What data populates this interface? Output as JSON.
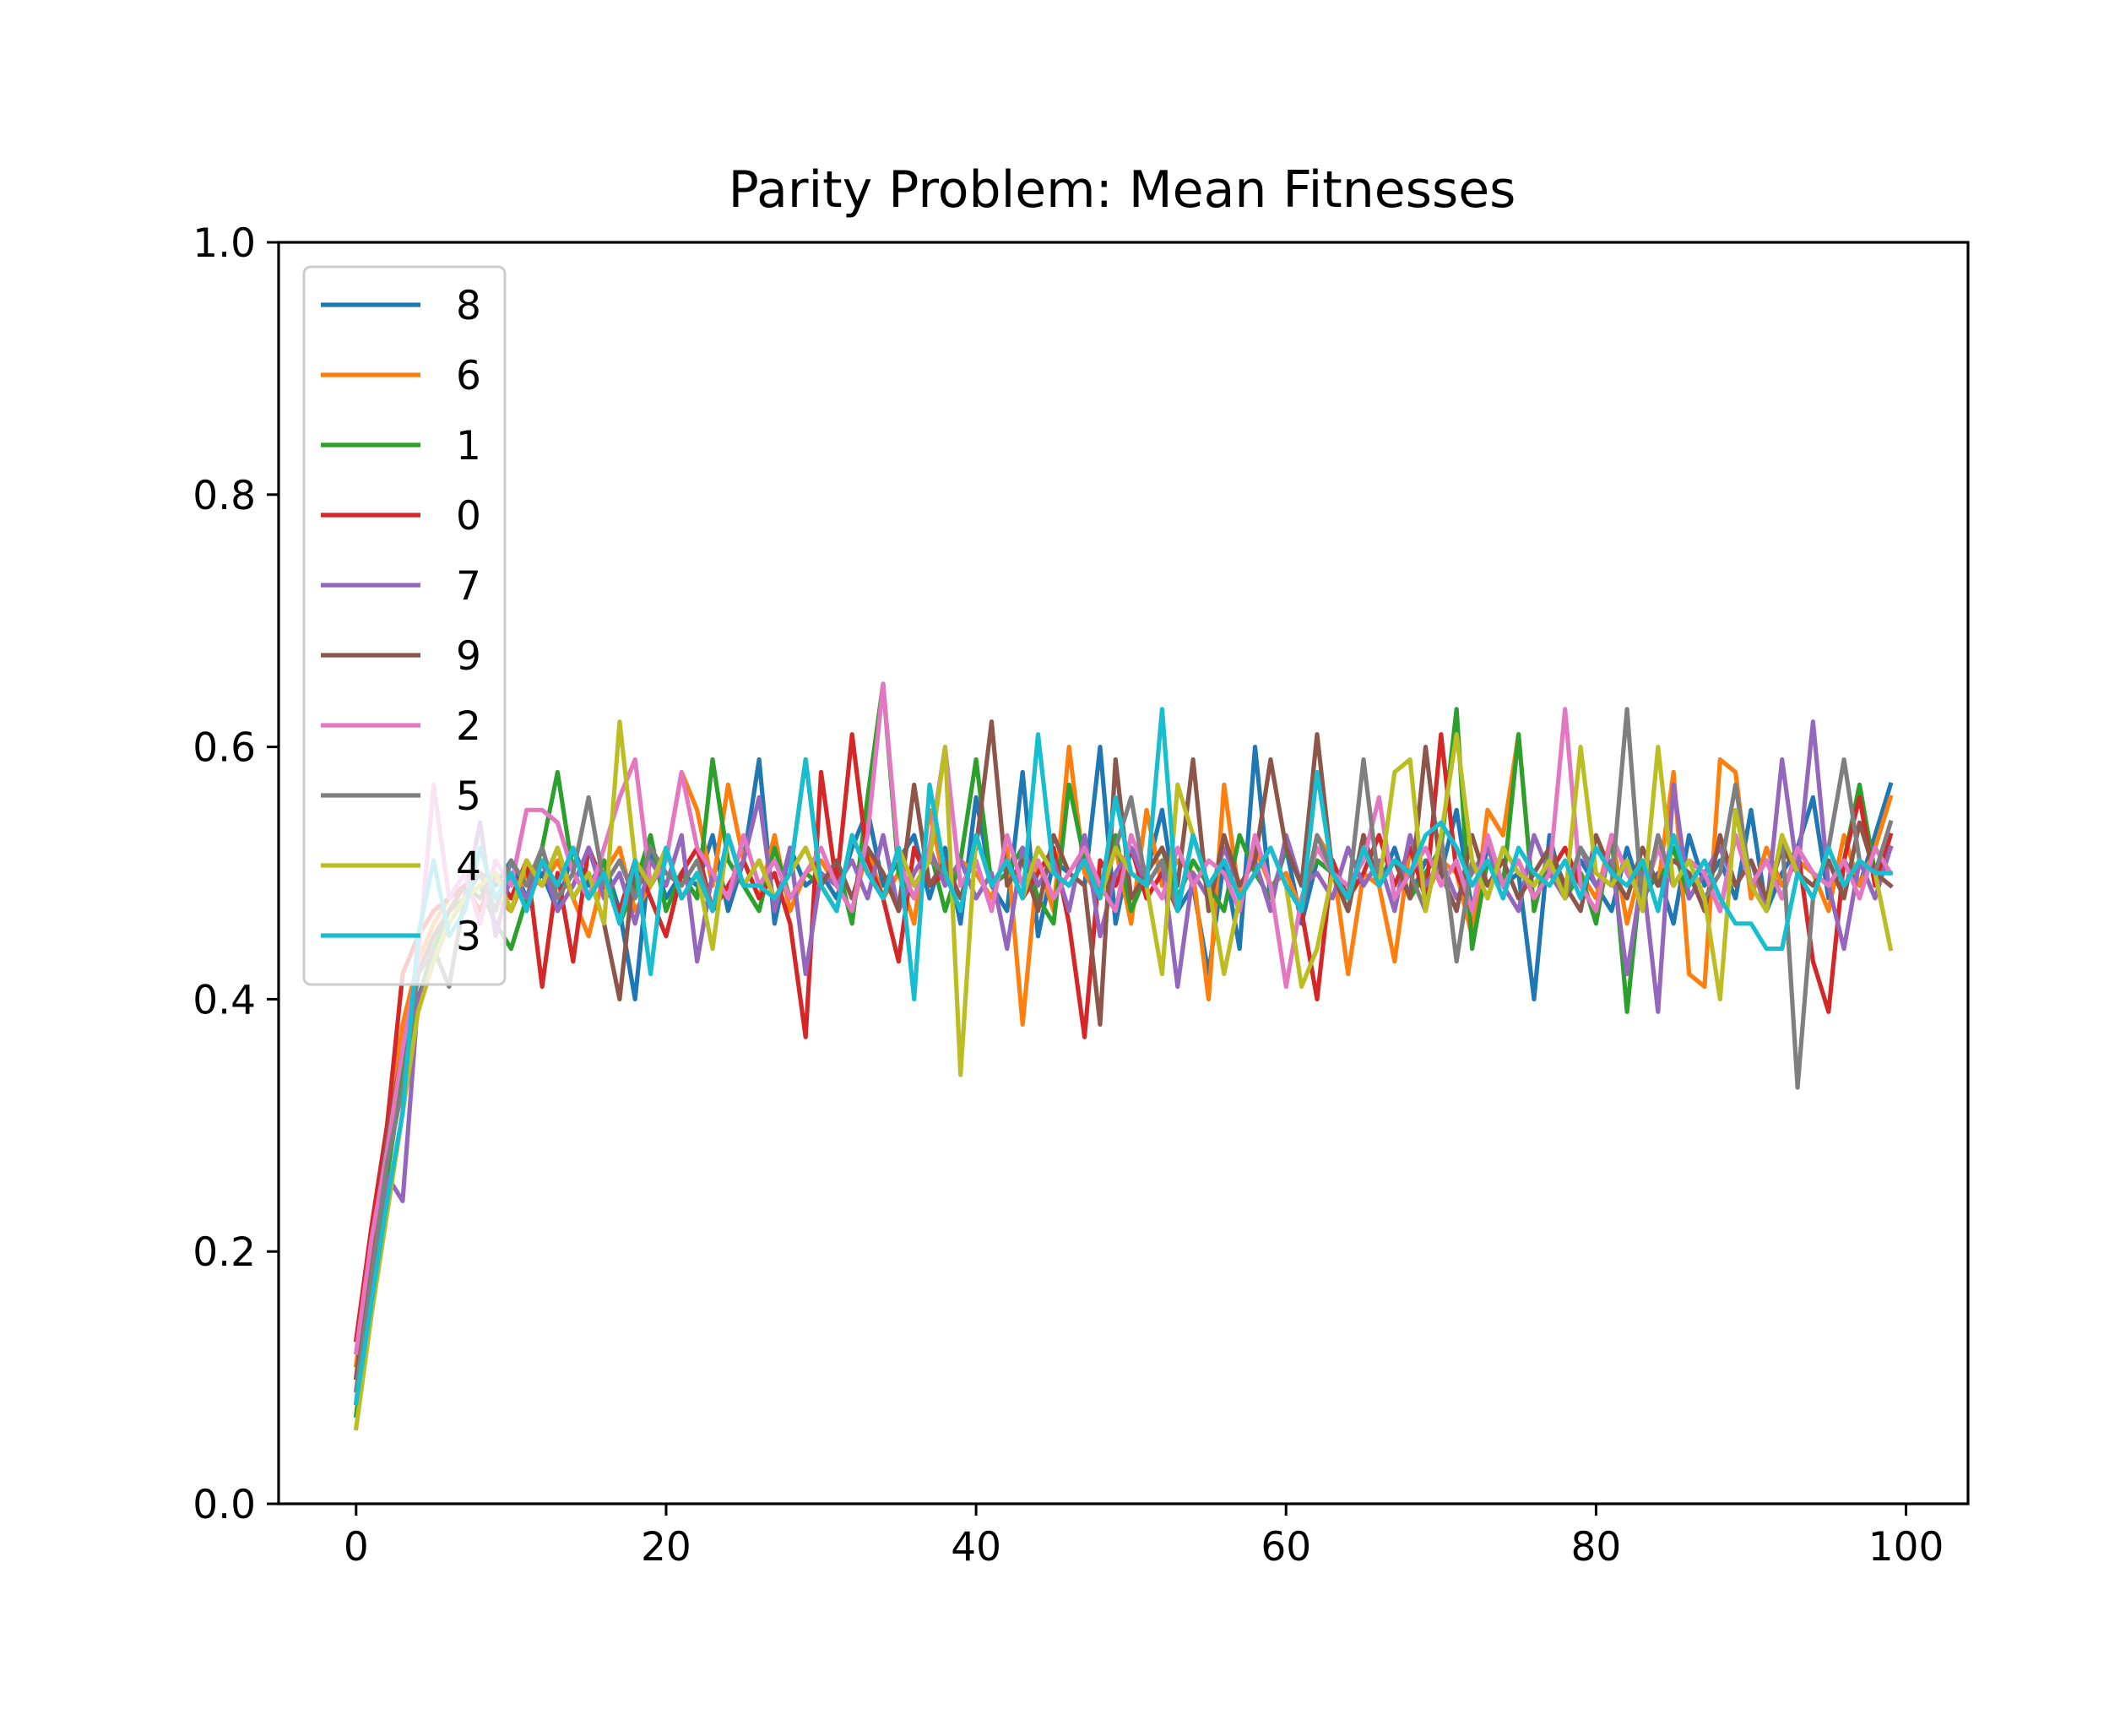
{
  "chart_data": {
    "type": "line",
    "title": "Parity Problem: Mean Fitnesses",
    "xlabel": "",
    "ylabel": "",
    "xlim": [
      -5,
      104
    ],
    "ylim": [
      0.0,
      1.0
    ],
    "xticks": [
      0,
      20,
      40,
      60,
      80,
      100
    ],
    "yticks": [
      0.0,
      0.2,
      0.4,
      0.6,
      0.8,
      1.0
    ],
    "xtick_labels": [
      "0",
      "20",
      "40",
      "60",
      "80",
      "100"
    ],
    "ytick_labels": [
      "0.0",
      "0.2",
      "0.4",
      "0.6",
      "0.8",
      "1.0"
    ],
    "grid": false,
    "legend_position": "top-left",
    "series": [
      {
        "name": "8",
        "color": "#1f77b4",
        "values": [
          0.08,
          0.18,
          0.27,
          0.35,
          0.4,
          0.44,
          0.47,
          0.49,
          0.5,
          0.49,
          0.51,
          0.48,
          0.5,
          0.47,
          0.52,
          0.49,
          0.51,
          0.47,
          0.4,
          0.52,
          0.48,
          0.5,
          0.49,
          0.53,
          0.47,
          0.51,
          0.59,
          0.46,
          0.52,
          0.49,
          0.5,
          0.48,
          0.52,
          0.55,
          0.49,
          0.51,
          0.53,
          0.48,
          0.52,
          0.46,
          0.56,
          0.49,
          0.47,
          0.58,
          0.45,
          0.51,
          0.5,
          0.49,
          0.6,
          0.46,
          0.52,
          0.5,
          0.55,
          0.47,
          0.49,
          0.42,
          0.51,
          0.44,
          0.6,
          0.48,
          0.52,
          0.46,
          0.51,
          0.5,
          0.47,
          0.53,
          0.49,
          0.52,
          0.48,
          0.51,
          0.5,
          0.55,
          0.47,
          0.52,
          0.49,
          0.5,
          0.4,
          0.53,
          0.48,
          0.51,
          0.49,
          0.47,
          0.52,
          0.48,
          0.5,
          0.46,
          0.53,
          0.49,
          0.51,
          0.48,
          0.55,
          0.47,
          0.5,
          0.52,
          0.56,
          0.48,
          0.51,
          0.49,
          0.53,
          0.57
        ]
      },
      {
        "name": "6",
        "color": "#ff7f0e",
        "values": [
          0.11,
          0.2,
          0.3,
          0.38,
          0.43,
          0.46,
          0.48,
          0.49,
          0.5,
          0.48,
          0.47,
          0.5,
          0.49,
          0.51,
          0.48,
          0.45,
          0.5,
          0.52,
          0.47,
          0.49,
          0.51,
          0.58,
          0.55,
          0.49,
          0.57,
          0.51,
          0.48,
          0.53,
          0.47,
          0.5,
          0.51,
          0.49,
          0.47,
          0.52,
          0.48,
          0.5,
          0.46,
          0.55,
          0.49,
          0.51,
          0.5,
          0.48,
          0.52,
          0.38,
          0.51,
          0.47,
          0.6,
          0.5,
          0.48,
          0.52,
          0.46,
          0.55,
          0.49,
          0.51,
          0.5,
          0.4,
          0.57,
          0.48,
          0.52,
          0.49,
          0.5,
          0.47,
          0.53,
          0.51,
          0.42,
          0.5,
          0.49,
          0.43,
          0.52,
          0.48,
          0.51,
          0.5,
          0.45,
          0.55,
          0.53,
          0.61,
          0.47,
          0.52,
          0.49,
          0.5,
          0.48,
          0.53,
          0.46,
          0.51,
          0.49,
          0.58,
          0.42,
          0.41,
          0.59,
          0.58,
          0.48,
          0.52,
          0.49,
          0.51,
          0.5,
          0.47,
          0.53,
          0.49,
          0.52,
          0.56
        ]
      },
      {
        "name": "1",
        "color": "#2ca02c",
        "values": [
          0.07,
          0.17,
          0.26,
          0.34,
          0.4,
          0.44,
          0.47,
          0.48,
          0.49,
          0.46,
          0.44,
          0.48,
          0.52,
          0.58,
          0.5,
          0.48,
          0.51,
          0.46,
          0.49,
          0.53,
          0.47,
          0.5,
          0.48,
          0.59,
          0.51,
          0.49,
          0.47,
          0.52,
          0.48,
          0.5,
          0.49,
          0.51,
          0.46,
          0.56,
          0.65,
          0.5,
          0.48,
          0.52,
          0.47,
          0.51,
          0.59,
          0.49,
          0.5,
          0.52,
          0.48,
          0.46,
          0.57,
          0.51,
          0.49,
          0.53,
          0.47,
          0.5,
          0.52,
          0.48,
          0.51,
          0.49,
          0.47,
          0.53,
          0.5,
          0.48,
          0.52,
          0.49,
          0.51,
          0.5,
          0.47,
          0.53,
          0.49,
          0.51,
          0.48,
          0.5,
          0.52,
          0.63,
          0.44,
          0.51,
          0.49,
          0.61,
          0.47,
          0.52,
          0.48,
          0.5,
          0.46,
          0.53,
          0.39,
          0.51,
          0.49,
          0.52,
          0.48,
          0.5,
          0.47,
          0.53,
          0.49,
          0.51,
          0.48,
          0.52,
          0.5,
          0.49,
          0.51,
          0.57,
          0.5,
          0.52
        ]
      },
      {
        "name": "0",
        "color": "#d62728",
        "values": [
          0.13,
          0.22,
          0.3,
          0.42,
          0.45,
          0.47,
          0.48,
          0.49,
          0.47,
          0.5,
          0.48,
          0.51,
          0.41,
          0.5,
          0.43,
          0.52,
          0.49,
          0.47,
          0.51,
          0.48,
          0.45,
          0.5,
          0.52,
          0.47,
          0.49,
          0.51,
          0.48,
          0.5,
          0.46,
          0.37,
          0.58,
          0.49,
          0.61,
          0.51,
          0.48,
          0.43,
          0.52,
          0.49,
          0.5,
          0.47,
          0.53,
          0.49,
          0.51,
          0.48,
          0.5,
          0.52,
          0.46,
          0.37,
          0.51,
          0.49,
          0.52,
          0.48,
          0.5,
          0.47,
          0.53,
          0.49,
          0.51,
          0.48,
          0.5,
          0.52,
          0.49,
          0.47,
          0.4,
          0.51,
          0.48,
          0.5,
          0.53,
          0.49,
          0.52,
          0.48,
          0.61,
          0.5,
          0.47,
          0.53,
          0.49,
          0.51,
          0.48,
          0.5,
          0.52,
          0.49,
          0.47,
          0.53,
          0.5,
          0.48,
          0.52,
          0.49,
          0.51,
          0.5,
          0.47,
          0.53,
          0.49,
          0.51,
          0.48,
          0.52,
          0.43,
          0.39,
          0.51,
          0.56,
          0.49,
          0.53
        ]
      },
      {
        "name": "7",
        "color": "#9467bd",
        "values": [
          0.1,
          0.19,
          0.26,
          0.24,
          0.4,
          0.43,
          0.46,
          0.48,
          0.54,
          0.45,
          0.5,
          0.48,
          0.51,
          0.47,
          0.49,
          0.52,
          0.48,
          0.5,
          0.46,
          0.51,
          0.49,
          0.53,
          0.43,
          0.5,
          0.48,
          0.51,
          0.56,
          0.47,
          0.52,
          0.42,
          0.5,
          0.49,
          0.51,
          0.48,
          0.53,
          0.47,
          0.5,
          0.52,
          0.49,
          0.51,
          0.48,
          0.5,
          0.44,
          0.52,
          0.49,
          0.51,
          0.47,
          0.53,
          0.45,
          0.5,
          0.52,
          0.49,
          0.51,
          0.41,
          0.5,
          0.48,
          0.52,
          0.49,
          0.51,
          0.47,
          0.53,
          0.49,
          0.5,
          0.48,
          0.52,
          0.49,
          0.51,
          0.47,
          0.53,
          0.49,
          0.51,
          0.48,
          0.5,
          0.52,
          0.49,
          0.47,
          0.53,
          0.5,
          0.48,
          0.52,
          0.49,
          0.51,
          0.42,
          0.5,
          0.39,
          0.57,
          0.48,
          0.5,
          0.52,
          0.49,
          0.51,
          0.47,
          0.59,
          0.5,
          0.62,
          0.49,
          0.44,
          0.51,
          0.48,
          0.52
        ]
      },
      {
        "name": "9",
        "color": "#8c564b",
        "values": [
          0.1,
          0.2,
          0.29,
          0.36,
          0.42,
          0.45,
          0.47,
          0.49,
          0.48,
          0.5,
          0.47,
          0.51,
          0.49,
          0.52,
          0.48,
          0.5,
          0.46,
          0.4,
          0.51,
          0.49,
          0.52,
          0.48,
          0.5,
          0.47,
          0.53,
          0.49,
          0.51,
          0.48,
          0.5,
          0.59,
          0.49,
          0.51,
          0.48,
          0.52,
          0.5,
          0.47,
          0.57,
          0.49,
          0.51,
          0.48,
          0.52,
          0.62,
          0.49,
          0.51,
          0.47,
          0.53,
          0.5,
          0.49,
          0.38,
          0.59,
          0.48,
          0.5,
          0.52,
          0.49,
          0.59,
          0.47,
          0.53,
          0.49,
          0.51,
          0.59,
          0.52,
          0.49,
          0.61,
          0.5,
          0.47,
          0.53,
          0.49,
          0.51,
          0.48,
          0.6,
          0.5,
          0.47,
          0.53,
          0.49,
          0.51,
          0.48,
          0.5,
          0.52,
          0.49,
          0.47,
          0.53,
          0.5,
          0.48,
          0.52,
          0.49,
          0.51,
          0.5,
          0.47,
          0.53,
          0.49,
          0.51,
          0.48,
          0.52,
          0.5,
          0.49,
          0.51,
          0.48,
          0.54,
          0.5,
          0.49
        ]
      },
      {
        "name": "2",
        "color": "#e377c2",
        "values": [
          0.12,
          0.21,
          0.28,
          0.36,
          0.43,
          0.57,
          0.48,
          0.5,
          0.46,
          0.51,
          0.49,
          0.55,
          0.55,
          0.54,
          0.5,
          0.48,
          0.52,
          0.56,
          0.59,
          0.49,
          0.51,
          0.58,
          0.52,
          0.5,
          0.48,
          0.53,
          0.49,
          0.51,
          0.48,
          0.5,
          0.52,
          0.49,
          0.47,
          0.53,
          0.65,
          0.51,
          0.48,
          0.52,
          0.6,
          0.49,
          0.51,
          0.47,
          0.53,
          0.49,
          0.51,
          0.48,
          0.5,
          0.52,
          0.49,
          0.47,
          0.53,
          0.5,
          0.48,
          0.52,
          0.49,
          0.51,
          0.5,
          0.47,
          0.53,
          0.49,
          0.41,
          0.48,
          0.52,
          0.5,
          0.49,
          0.51,
          0.56,
          0.48,
          0.5,
          0.52,
          0.49,
          0.51,
          0.47,
          0.53,
          0.49,
          0.51,
          0.48,
          0.5,
          0.63,
          0.49,
          0.47,
          0.53,
          0.5,
          0.48,
          0.52,
          0.49,
          0.51,
          0.5,
          0.47,
          0.53,
          0.49,
          0.51,
          0.48,
          0.52,
          0.5,
          0.49,
          0.51,
          0.48,
          0.52,
          0.5
        ]
      },
      {
        "name": "5",
        "color": "#7f7f7f",
        "values": [
          0.09,
          0.18,
          0.27,
          0.33,
          0.42,
          0.44,
          0.41,
          0.48,
          0.5,
          0.47,
          0.51,
          0.49,
          0.52,
          0.48,
          0.5,
          0.56,
          0.49,
          0.51,
          0.48,
          0.52,
          0.5,
          0.49,
          0.51,
          0.47,
          0.53,
          0.49,
          0.51,
          0.48,
          0.5,
          0.52,
          0.49,
          0.47,
          0.53,
          0.5,
          0.48,
          0.52,
          0.49,
          0.51,
          0.5,
          0.47,
          0.53,
          0.49,
          0.51,
          0.48,
          0.52,
          0.5,
          0.49,
          0.51,
          0.48,
          0.52,
          0.56,
          0.49,
          0.51,
          0.47,
          0.53,
          0.49,
          0.51,
          0.48,
          0.5,
          0.52,
          0.49,
          0.47,
          0.53,
          0.5,
          0.48,
          0.59,
          0.49,
          0.51,
          0.5,
          0.47,
          0.53,
          0.43,
          0.51,
          0.48,
          0.52,
          0.5,
          0.49,
          0.51,
          0.48,
          0.52,
          0.5,
          0.49,
          0.63,
          0.47,
          0.53,
          0.49,
          0.51,
          0.48,
          0.5,
          0.57,
          0.49,
          0.47,
          0.53,
          0.33,
          0.48,
          0.52,
          0.59,
          0.51,
          0.5,
          0.54
        ]
      },
      {
        "name": "4",
        "color": "#bcbd22",
        "values": [
          0.06,
          0.15,
          0.23,
          0.31,
          0.39,
          0.43,
          0.46,
          0.48,
          0.49,
          0.5,
          0.47,
          0.51,
          0.49,
          0.52,
          0.48,
          0.5,
          0.46,
          0.62,
          0.51,
          0.49,
          0.52,
          0.48,
          0.5,
          0.44,
          0.53,
          0.49,
          0.51,
          0.48,
          0.5,
          0.52,
          0.49,
          0.47,
          0.53,
          0.5,
          0.48,
          0.52,
          0.49,
          0.51,
          0.6,
          0.34,
          0.53,
          0.49,
          0.51,
          0.48,
          0.52,
          0.5,
          0.49,
          0.51,
          0.48,
          0.52,
          0.5,
          0.49,
          0.42,
          0.57,
          0.53,
          0.49,
          0.42,
          0.48,
          0.5,
          0.52,
          0.49,
          0.41,
          0.44,
          0.5,
          0.48,
          0.52,
          0.49,
          0.58,
          0.59,
          0.47,
          0.53,
          0.61,
          0.51,
          0.48,
          0.52,
          0.5,
          0.49,
          0.51,
          0.48,
          0.6,
          0.5,
          0.49,
          0.51,
          0.47,
          0.6,
          0.49,
          0.51,
          0.48,
          0.4,
          0.55,
          0.49,
          0.47,
          0.53,
          0.5,
          0.48,
          0.52,
          0.49,
          0.51,
          0.5,
          0.44
        ]
      },
      {
        "name": "3",
        "color": "#17becf",
        "values": [
          0.08,
          0.16,
          0.24,
          0.31,
          0.45,
          0.51,
          0.45,
          0.47,
          0.52,
          0.48,
          0.5,
          0.47,
          0.51,
          0.49,
          0.52,
          0.48,
          0.5,
          0.46,
          0.51,
          0.42,
          0.52,
          0.48,
          0.5,
          0.47,
          0.53,
          0.49,
          0.49,
          0.48,
          0.5,
          0.59,
          0.49,
          0.47,
          0.53,
          0.5,
          0.48,
          0.52,
          0.4,
          0.57,
          0.5,
          0.47,
          0.53,
          0.49,
          0.51,
          0.48,
          0.61,
          0.5,
          0.49,
          0.51,
          0.48,
          0.56,
          0.5,
          0.49,
          0.63,
          0.47,
          0.53,
          0.49,
          0.51,
          0.48,
          0.5,
          0.52,
          0.49,
          0.47,
          0.58,
          0.5,
          0.48,
          0.52,
          0.49,
          0.51,
          0.5,
          0.53,
          0.54,
          0.52,
          0.49,
          0.51,
          0.48,
          0.52,
          0.5,
          0.49,
          0.51,
          0.48,
          0.52,
          0.5,
          0.49,
          0.51,
          0.47,
          0.53,
          0.49,
          0.51,
          0.48,
          0.46,
          0.46,
          0.44,
          0.44,
          0.5,
          0.48,
          0.52,
          0.49,
          0.51,
          0.5,
          0.5
        ]
      }
    ]
  }
}
